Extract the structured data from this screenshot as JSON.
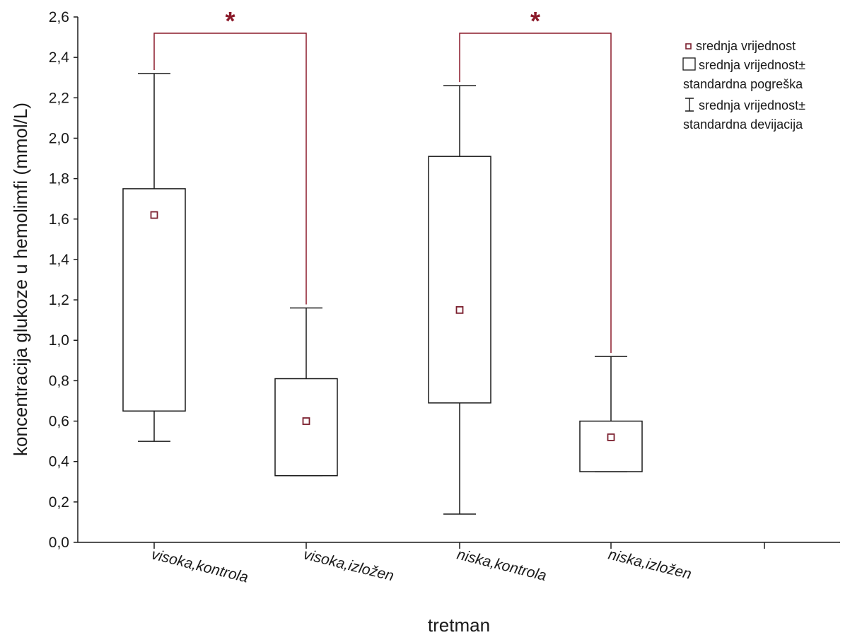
{
  "chart_data": {
    "type": "box",
    "xlabel": "tretman",
    "ylabel": "koncentracija glukoze u hemolimfi (mmol/L)",
    "ylim": [
      0,
      2.6
    ],
    "yticks": [
      "0,0",
      "0,2",
      "0,4",
      "0,6",
      "0,8",
      "1,0",
      "1,2",
      "1,4",
      "1,6",
      "1,8",
      "2,0",
      "2,2",
      "2,4",
      "2,6"
    ],
    "categories": [
      "visoka,kontrola",
      "visoka,izložen",
      "niska,kontrola",
      "niska,izložen"
    ],
    "groups": [
      {
        "category": "visoka,kontrola",
        "mean": 1.62,
        "se_low": 0.65,
        "se_high": 1.75,
        "sd_low": 0.5,
        "sd_high": 2.32
      },
      {
        "category": "visoka,izložen",
        "mean": 0.6,
        "se_low": 0.33,
        "se_high": 0.81,
        "sd_low": 0.33,
        "sd_high": 1.16
      },
      {
        "category": "niska,kontrola",
        "mean": 1.15,
        "se_low": 0.69,
        "se_high": 1.91,
        "sd_low": 0.14,
        "sd_high": 2.26
      },
      {
        "category": "niska,izložen",
        "mean": 0.52,
        "se_low": 0.35,
        "se_high": 0.6,
        "sd_low": 0.35,
        "sd_high": 0.92
      }
    ],
    "significance": [
      {
        "from": "visoka,kontrola",
        "to": "visoka,izložen",
        "label": "*"
      },
      {
        "from": "niska,kontrola",
        "to": "niska,izložen",
        "label": "*"
      }
    ],
    "legend": {
      "placement": "top-right",
      "items": [
        {
          "symbol": "mean-marker",
          "lines": [
            "srednja vrijednost"
          ]
        },
        {
          "symbol": "box",
          "lines": [
            "srednja vrijednost±",
            "standardna pogreška"
          ]
        },
        {
          "symbol": "whisker",
          "lines": [
            "srednja vrijednost±",
            "standardna devijacija"
          ]
        }
      ]
    },
    "colors": {
      "axis": "#1a1a1a",
      "marker": "#7b1f2e",
      "bracket": "#8b1a2a"
    }
  }
}
